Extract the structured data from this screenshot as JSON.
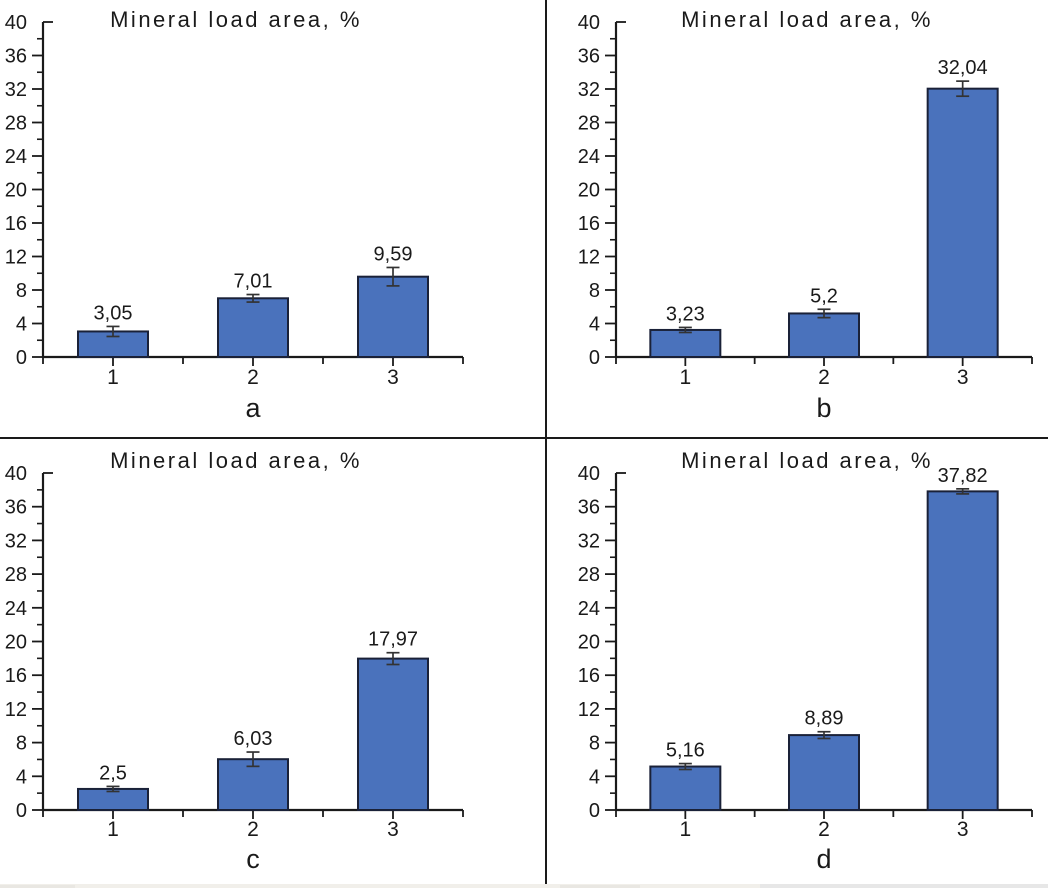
{
  "figure": {
    "panels": [
      {
        "label": "a"
      },
      {
        "label": "b"
      },
      {
        "label": "c"
      },
      {
        "label": "d"
      }
    ]
  },
  "style": {
    "bar_fill": "#4a72bc",
    "bar_border": "#1a2138",
    "axis_color": "#1a1a1a",
    "error_bar_color": "#333333",
    "text_color": "#1a1a1a",
    "background": "#ffffff"
  },
  "chart_data": [
    {
      "type": "bar",
      "panel_label": "a",
      "title": "Mineral load area, %",
      "categories": [
        "1",
        "2",
        "3"
      ],
      "values": [
        3.05,
        7.01,
        9.59
      ],
      "value_labels": [
        "3,05",
        "7,01",
        "9,59"
      ],
      "error_bars": [
        0.6,
        0.45,
        1.1
      ],
      "ylim": [
        0,
        40
      ],
      "yticks_major": [
        0,
        4,
        8,
        12,
        16,
        20,
        24,
        28,
        32,
        36,
        40
      ],
      "yticks_minor_step": 2,
      "grid": false,
      "legend": null
    },
    {
      "type": "bar",
      "panel_label": "b",
      "title": "Mineral load area, %",
      "categories": [
        "1",
        "2",
        "3"
      ],
      "values": [
        3.23,
        5.2,
        32.04
      ],
      "value_labels": [
        "3,23",
        "5,2",
        "32,04"
      ],
      "error_bars": [
        0.3,
        0.5,
        0.9
      ],
      "ylim": [
        0,
        40
      ],
      "yticks_major": [
        0,
        4,
        8,
        12,
        16,
        20,
        24,
        28,
        32,
        36,
        40
      ],
      "yticks_minor_step": 2,
      "grid": false,
      "legend": null
    },
    {
      "type": "bar",
      "panel_label": "c",
      "title": "Mineral load area, %",
      "categories": [
        "1",
        "2",
        "3"
      ],
      "values": [
        2.5,
        6.03,
        17.97
      ],
      "value_labels": [
        "2,5",
        "6,03",
        "17,97"
      ],
      "error_bars": [
        0.3,
        0.85,
        0.7
      ],
      "ylim": [
        0,
        40
      ],
      "yticks_major": [
        0,
        4,
        8,
        12,
        16,
        20,
        24,
        28,
        32,
        36,
        40
      ],
      "yticks_minor_step": 2,
      "grid": false,
      "legend": null
    },
    {
      "type": "bar",
      "panel_label": "d",
      "title": "Mineral load area, %",
      "categories": [
        "1",
        "2",
        "3"
      ],
      "values": [
        5.16,
        8.89,
        37.82
      ],
      "value_labels": [
        "5,16",
        "8,89",
        "37,82"
      ],
      "error_bars": [
        0.35,
        0.4,
        0.3
      ],
      "ylim": [
        0,
        40
      ],
      "yticks_major": [
        0,
        4,
        8,
        12,
        16,
        20,
        24,
        28,
        32,
        36,
        40
      ],
      "yticks_minor_step": 2,
      "grid": false,
      "legend": null
    }
  ]
}
